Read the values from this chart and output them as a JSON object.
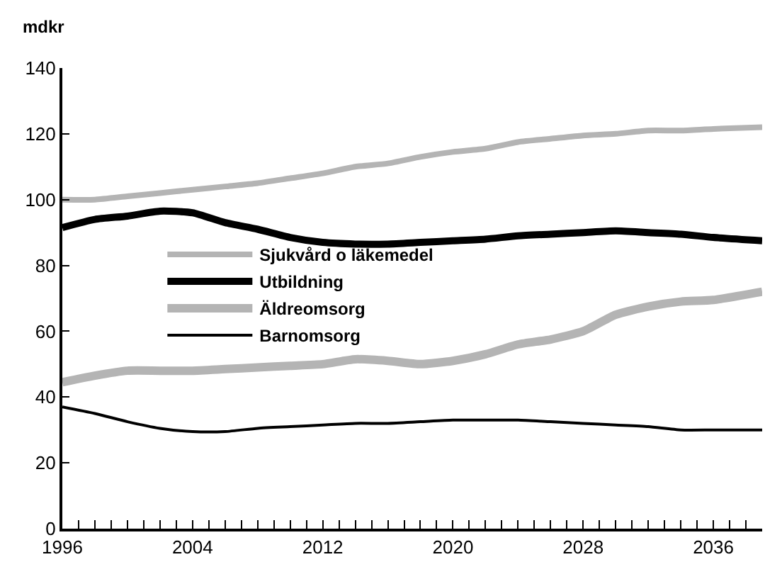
{
  "chart_data": {
    "type": "line",
    "ylabel": "mdkr",
    "xlim": [
      1996,
      2039
    ],
    "ylim": [
      0,
      140
    ],
    "yticks": [
      0,
      20,
      40,
      60,
      80,
      100,
      120,
      140
    ],
    "xticks": [
      1996,
      {
        "value": 1997,
        "label": null
      },
      {
        "value": 1998,
        "label": null
      },
      {
        "value": 1999,
        "label": null
      },
      {
        "value": 2000,
        "label": null
      },
      {
        "value": 2001,
        "label": null
      },
      {
        "value": 2002,
        "label": null
      },
      {
        "value": 2003,
        "label": null
      },
      2004,
      {
        "value": 2005,
        "label": null
      },
      {
        "value": 2006,
        "label": null
      },
      {
        "value": 2007,
        "label": null
      },
      {
        "value": 2008,
        "label": null
      },
      {
        "value": 2009,
        "label": null
      },
      {
        "value": 2010,
        "label": null
      },
      {
        "value": 2011,
        "label": null
      },
      2012,
      {
        "value": 2013,
        "label": null
      },
      {
        "value": 2014,
        "label": null
      },
      {
        "value": 2015,
        "label": null
      },
      {
        "value": 2016,
        "label": null
      },
      {
        "value": 2017,
        "label": null
      },
      {
        "value": 2018,
        "label": null
      },
      {
        "value": 2019,
        "label": null
      },
      2020,
      {
        "value": 2021,
        "label": null
      },
      {
        "value": 2022,
        "label": null
      },
      {
        "value": 2023,
        "label": null
      },
      {
        "value": 2024,
        "label": null
      },
      {
        "value": 2025,
        "label": null
      },
      {
        "value": 2026,
        "label": null
      },
      {
        "value": 2027,
        "label": null
      },
      2028,
      {
        "value": 2029,
        "label": null
      },
      {
        "value": 2030,
        "label": null
      },
      {
        "value": 2031,
        "label": null
      },
      {
        "value": 2032,
        "label": null
      },
      {
        "value": 2033,
        "label": null
      },
      {
        "value": 2034,
        "label": null
      },
      {
        "value": 2035,
        "label": null
      },
      2036,
      {
        "value": 2037,
        "label": null
      },
      {
        "value": 2038,
        "label": null
      },
      {
        "value": 2039,
        "label": null
      }
    ],
    "x": [
      1996,
      1998,
      2000,
      2002,
      2004,
      2006,
      2008,
      2010,
      2012,
      2014,
      2016,
      2018,
      2020,
      2022,
      2024,
      2026,
      2028,
      2030,
      2032,
      2034,
      2036,
      2039
    ],
    "legend": "left",
    "marker": "none",
    "line_style": "solid",
    "series": [
      {
        "name": "Sjukvård o läkemedel",
        "color": "#b4b4b4",
        "values": [
          100,
          100,
          101,
          102,
          103,
          104,
          105,
          106.5,
          108,
          110,
          111,
          113,
          114.5,
          115.5,
          117.5,
          118.5,
          119.5,
          120,
          121,
          121,
          121.5,
          122
        ]
      },
      {
        "name": "Utbildning",
        "color": "#000000",
        "values": [
          91.5,
          94,
          95,
          96.5,
          96,
          93,
          91,
          88.5,
          87,
          86.5,
          86.5,
          87,
          87.5,
          88,
          89,
          89.5,
          90,
          90.5,
          90,
          89.5,
          88.5,
          87.5
        ]
      },
      {
        "name": "Äldreomsorg",
        "color": "#b4b4b4",
        "values": [
          44.5,
          46.5,
          48,
          48,
          48,
          48.5,
          49,
          49.5,
          50,
          51.5,
          51,
          50,
          51,
          53,
          56,
          57.5,
          60,
          65,
          67.5,
          69,
          69.5,
          72
        ]
      },
      {
        "name": "Barnomsorg",
        "color": "#000000",
        "values": [
          37,
          35,
          32.5,
          30.5,
          29.5,
          29.5,
          30.5,
          31,
          31.5,
          32,
          32,
          32.5,
          33,
          33,
          33,
          32.5,
          32,
          31.5,
          31,
          30,
          30,
          30
        ]
      }
    ]
  }
}
